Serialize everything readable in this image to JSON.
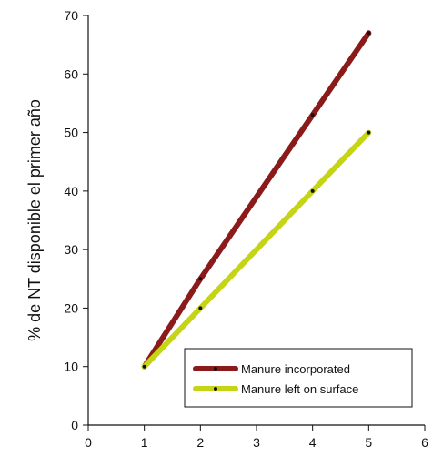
{
  "chart_data": {
    "type": "line",
    "xlabel": "",
    "ylabel": "% de NT disponible el primer año",
    "xlim": [
      0,
      6
    ],
    "ylim": [
      0,
      70
    ],
    "x_ticks": [
      0,
      1,
      2,
      3,
      4,
      5,
      6
    ],
    "y_ticks": [
      0,
      10,
      20,
      30,
      40,
      50,
      60,
      70
    ],
    "grid": false,
    "legend_position": "bottom-right",
    "series": [
      {
        "name": "Manure incorporated",
        "color": "#8b1a1a",
        "points": [
          {
            "x": 1,
            "y": 10
          },
          {
            "x": 2,
            "y": 25
          },
          {
            "x": 4,
            "y": 53
          },
          {
            "x": 5,
            "y": 67
          }
        ]
      },
      {
        "name": "Manure left on surface",
        "color": "#c5d414",
        "points": [
          {
            "x": 1,
            "y": 10
          },
          {
            "x": 2,
            "y": 20
          },
          {
            "x": 4,
            "y": 40
          },
          {
            "x": 5,
            "y": 50
          }
        ]
      }
    ]
  }
}
